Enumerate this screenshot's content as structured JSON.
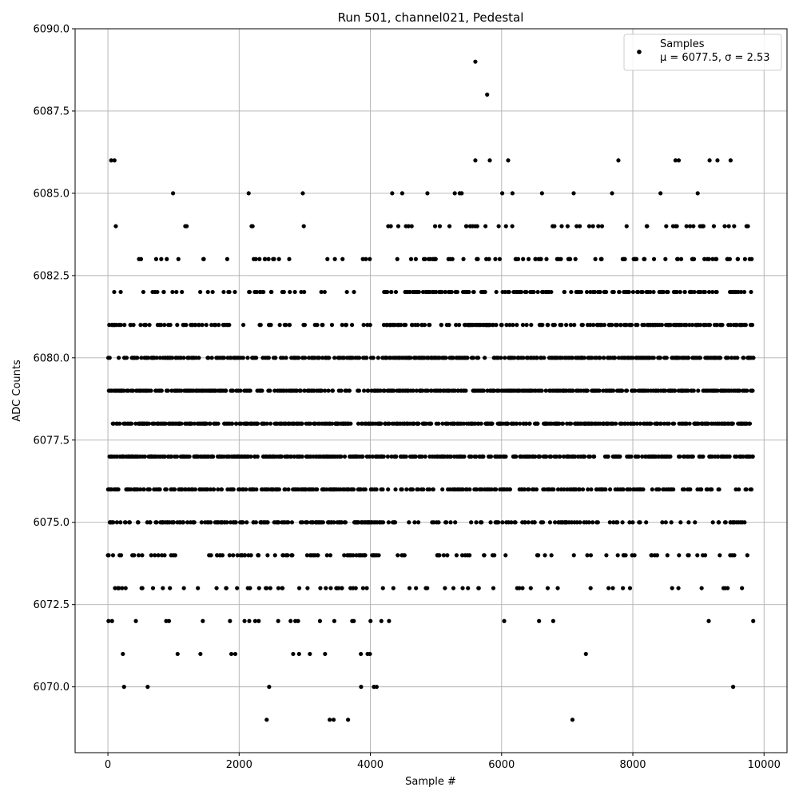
{
  "chart_data": {
    "type": "scatter",
    "title": "Run 501, channel021, Pedestal",
    "xlabel": "Sample #",
    "ylabel": "ADC Counts",
    "xlim": [
      -500,
      10350
    ],
    "ylim": [
      6068,
      6090
    ],
    "x_ticks": [
      0,
      2000,
      4000,
      6000,
      8000,
      10000
    ],
    "x_tick_labels": [
      "0",
      "2000",
      "4000",
      "6000",
      "8000",
      "10000"
    ],
    "y_ticks": [
      6070.0,
      6072.5,
      6075.0,
      6077.5,
      6080.0,
      6082.5,
      6085.0,
      6087.5,
      6090.0
    ],
    "y_tick_labels": [
      "6070.0",
      "6072.5",
      "6075.0",
      "6077.5",
      "6080.0",
      "6082.5",
      "6085.0",
      "6087.5",
      "6090.0"
    ],
    "grid": true,
    "legend_position": "top-right",
    "series": [
      {
        "name": "Samples",
        "color": "#000000",
        "marker": "circle",
        "n_samples": 9840,
        "x_range": [
          0,
          9840
        ],
        "mean": 6077.5,
        "sigma": 2.53,
        "levels": [
          6070,
          6071,
          6072,
          6073,
          6074,
          6075,
          6076,
          6077,
          6078,
          6079,
          6080,
          6081,
          6082,
          6083,
          6084,
          6085
        ],
        "notable_points": [
          {
            "x": 5600,
            "y": 6089
          },
          {
            "x": 5780,
            "y": 6088
          },
          {
            "x": 50,
            "y": 6086
          },
          {
            "x": 100,
            "y": 6086
          },
          {
            "x": 5600,
            "y": 6086
          },
          {
            "x": 5820,
            "y": 6086
          },
          {
            "x": 6100,
            "y": 6086
          },
          {
            "x": 7780,
            "y": 6086
          },
          {
            "x": 8650,
            "y": 6086
          },
          {
            "x": 8700,
            "y": 6086
          },
          {
            "x": 9170,
            "y": 6086
          },
          {
            "x": 9290,
            "y": 6086
          },
          {
            "x": 9490,
            "y": 6086
          },
          {
            "x": 2420,
            "y": 6069
          },
          {
            "x": 3380,
            "y": 6069
          },
          {
            "x": 3440,
            "y": 6069
          },
          {
            "x": 3660,
            "y": 6069
          },
          {
            "x": 7080,
            "y": 6069
          }
        ]
      }
    ],
    "legend": {
      "label": "Samples",
      "stats_line": "μ = 6077.5, σ = 2.53"
    }
  }
}
